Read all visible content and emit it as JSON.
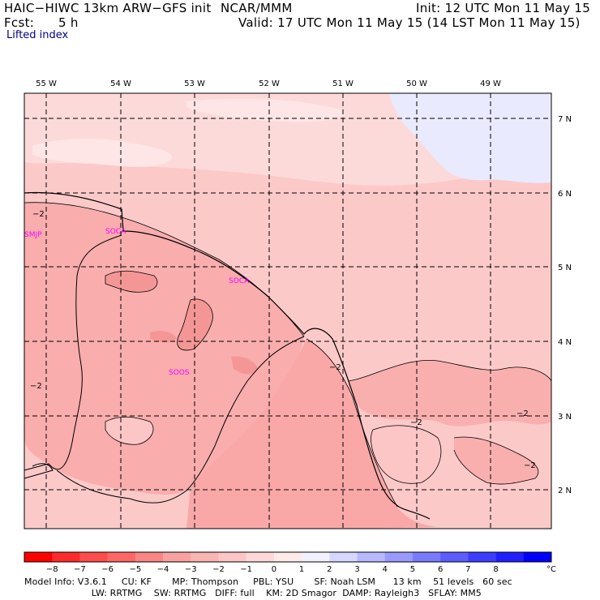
{
  "header": {
    "model": "HAIC−HIWC 13km ARW−GFS init",
    "org": "NCAR/MMM",
    "init": "Init: 12 UTC Mon 11 May 15",
    "fcst_label": "Fcst:",
    "fcst_value": "5 h",
    "valid": "Valid: 17 UTC Mon 11 May 15 (14 LST Mon 11 May 15)",
    "field": "Lifted index"
  },
  "map": {
    "lon_labels": [
      "55 W",
      "54 W",
      "53 W",
      "52 W",
      "51 W",
      "50 W",
      "49 W"
    ],
    "lat_labels": [
      "7 N",
      "6 N",
      "5 N",
      "4 N",
      "3 N",
      "2 N"
    ],
    "contour_labels": [
      "−2",
      "−2",
      "−2",
      "−2",
      "−2",
      "−2"
    ],
    "stations": [
      "SMJP",
      "SOCA",
      "SOCA",
      "SOOS"
    ]
  },
  "colorbar": {
    "colors": [
      "#ff0000",
      "#ff2a2a",
      "#ff4d4d",
      "#ff6666",
      "#f98585",
      "#f9a1a1",
      "#fab4b4",
      "#fcc6c6",
      "#fdd8d8",
      "#ffeaea",
      "#f2f2ff",
      "#d6d6ff",
      "#b8b8ff",
      "#9999ff",
      "#7a7aff",
      "#5c5cff",
      "#3d3dff",
      "#1f1fff",
      "#0000ff"
    ],
    "ticks": [
      "−8",
      "−7",
      "−6",
      "−5",
      "−4",
      "−3",
      "−2",
      "−1",
      "0",
      "1",
      "2",
      "3",
      "4",
      "5",
      "6",
      "7",
      "8"
    ],
    "unit": "°C"
  },
  "footer": {
    "line1": "Model Info: V3.6.1     CU: KF       MP: Thompson     PBL: YSU       SF: Noah LSM      13 km    51 levels   60 sec",
    "line2": "                       LW: RRTMG    SW: RRTMG   DIFF: full    KM: 2D Smagor  DAMP: Rayleigh3   SFLAY: MM5"
  }
}
